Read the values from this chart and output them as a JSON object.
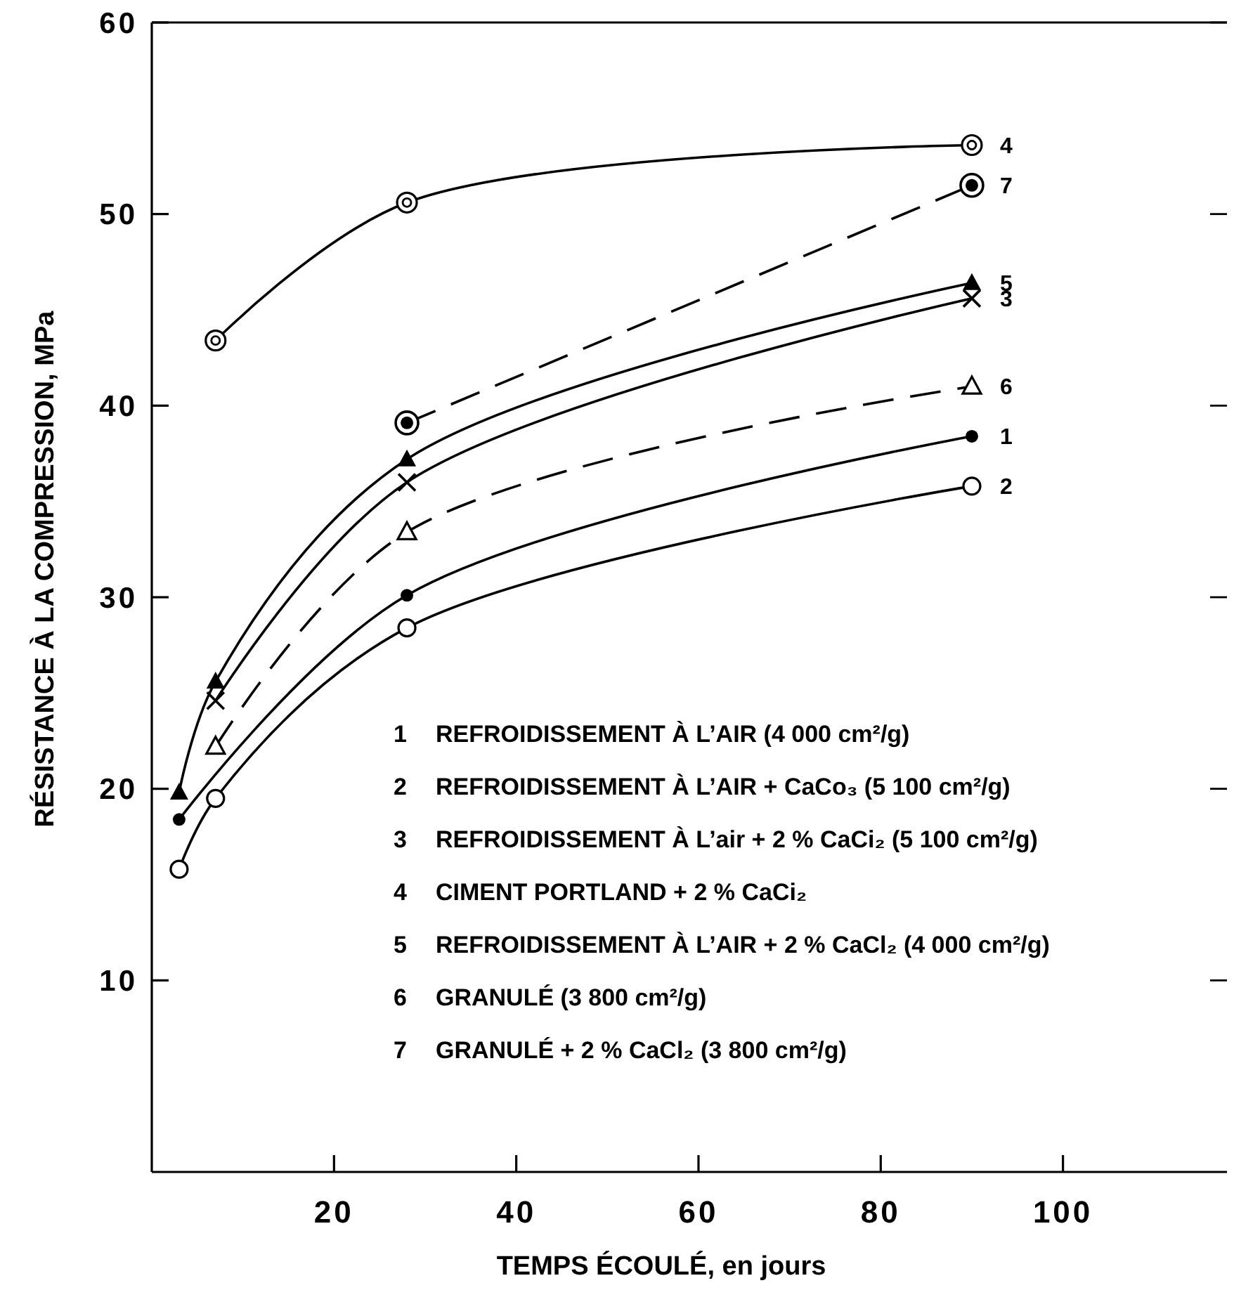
{
  "chart_data": {
    "type": "line",
    "xlabel": "TEMPS ÉCOULÉ, en jours",
    "ylabel": "RÉSISTANCE À LA COMPRESSION, MPa",
    "xlim": [
      0,
      118
    ],
    "xticks": [
      20,
      40,
      60,
      80,
      100
    ],
    "ylim": [
      0,
      60
    ],
    "yticks": [
      10,
      20,
      30,
      40,
      50,
      60
    ],
    "grid": false,
    "series": [
      {
        "name": "1",
        "color": "#000000",
        "marker": "circle",
        "line_style": "solid",
        "x": [
          3,
          28,
          90
        ],
        "values": [
          18.4,
          30.1,
          38.4
        ]
      },
      {
        "name": "2",
        "color": "#000000",
        "marker": "circle-open",
        "line_style": "solid",
        "x": [
          3,
          7,
          28,
          90
        ],
        "values": [
          15.8,
          19.5,
          28.4,
          35.8
        ]
      },
      {
        "name": "3",
        "color": "#000000",
        "marker": "cross",
        "line_style": "solid",
        "x": [
          7,
          28,
          90
        ],
        "values": [
          24.6,
          36.0,
          45.6
        ]
      },
      {
        "name": "4",
        "color": "#000000",
        "marker": "double-circle",
        "line_style": "solid",
        "x": [
          7,
          28,
          90
        ],
        "values": [
          43.4,
          50.6,
          53.6
        ]
      },
      {
        "name": "5",
        "color": "#000000",
        "marker": "triangle",
        "line_style": "solid",
        "x": [
          3,
          7,
          28,
          90
        ],
        "values": [
          19.8,
          25.6,
          37.2,
          46.4
        ]
      },
      {
        "name": "6",
        "color": "#000000",
        "marker": "triangle-open",
        "line_style": "dashed",
        "x": [
          7,
          28,
          90
        ],
        "values": [
          22.2,
          33.4,
          41.0
        ]
      },
      {
        "name": "7",
        "color": "#000000",
        "marker": "double-circle-filled",
        "line_style": "dashed",
        "x": [
          28,
          90
        ],
        "values": [
          39.1,
          51.5
        ]
      }
    ],
    "annotations": [
      "REFROIDISSEMENT À L’AIR (4 000 cm²/g)",
      "REFROIDISSEMENT À L’AIR + CaCo₃ (5 100 cm²/g)",
      "REFROIDISSEMENT À L’air + 2 % CaCi₂ (5 100 cm²/g)",
      "CIMENT PORTLAND + 2 % CaCi₂",
      "REFROIDISSEMENT À L’AIR + 2 % CaCl₂ (4 000 cm²/g)",
      "GRANULÉ (3 800 cm²/g)",
      "GRANULÉ + 2 % CaCl₂ (3 800 cm²/g)"
    ]
  }
}
